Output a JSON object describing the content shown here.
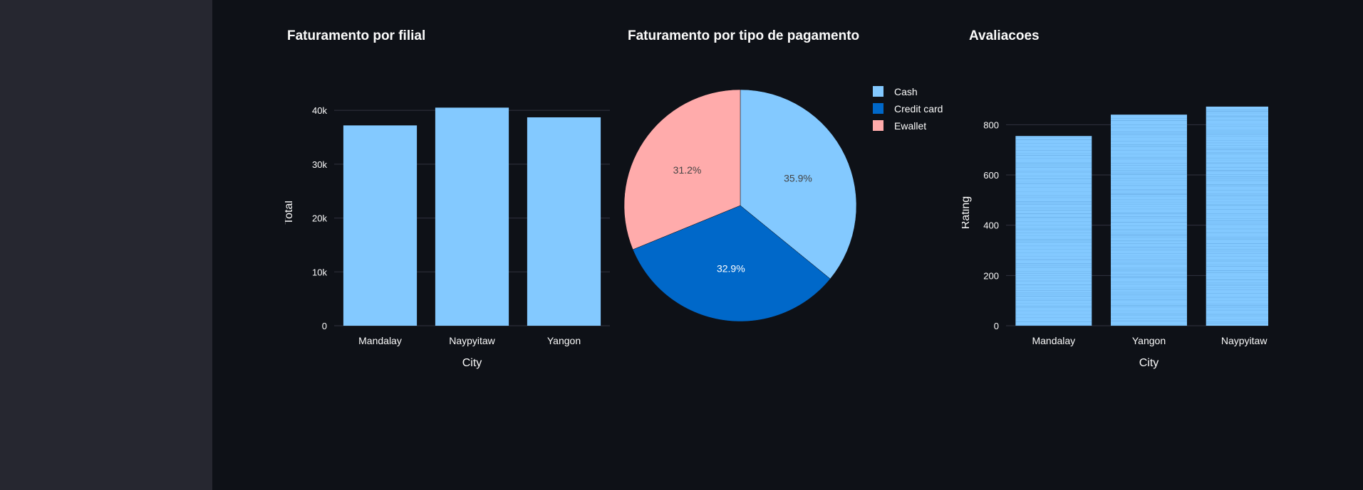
{
  "colors": {
    "background": "#0e1117",
    "sidebar": "#262730",
    "bar": "#83c9ff",
    "grid": "#31333f",
    "tick_text": "#fafafa",
    "pie": [
      "#83c9ff",
      "#0068c9",
      "#ffabab"
    ]
  },
  "chart_data": [
    {
      "type": "bar",
      "title": "Faturamento por filial",
      "xlabel": "City",
      "ylabel": "Total",
      "categories": [
        "Mandalay",
        "Naypyitaw",
        "Yangon"
      ],
      "values": [
        37200,
        40500,
        38700
      ],
      "ylim": [
        0,
        42000
      ],
      "yticks": [
        0,
        10000,
        20000,
        30000,
        40000
      ],
      "ytick_labels": [
        "0",
        "10k",
        "20k",
        "30k",
        "40k"
      ],
      "grid": true
    },
    {
      "type": "pie",
      "title": "Faturamento por tipo de pagamento",
      "labels": [
        "Cash",
        "Credit card",
        "Ewallet"
      ],
      "values": [
        35.9,
        32.9,
        31.2
      ],
      "value_labels": [
        "35.9%",
        "32.9%",
        "31.2%"
      ],
      "legend": "right"
    },
    {
      "type": "bar",
      "title": "Avaliacoes",
      "xlabel": "City",
      "ylabel": "Rating",
      "categories": [
        "Mandalay",
        "Yangon",
        "Naypyitaw"
      ],
      "values": [
        755,
        840,
        872
      ],
      "ylim": [
        0,
        900
      ],
      "yticks": [
        0,
        200,
        400,
        600,
        800
      ],
      "ytick_labels": [
        "0",
        "200",
        "400",
        "600",
        "800"
      ],
      "grid": true,
      "stacked_segments": true
    }
  ]
}
